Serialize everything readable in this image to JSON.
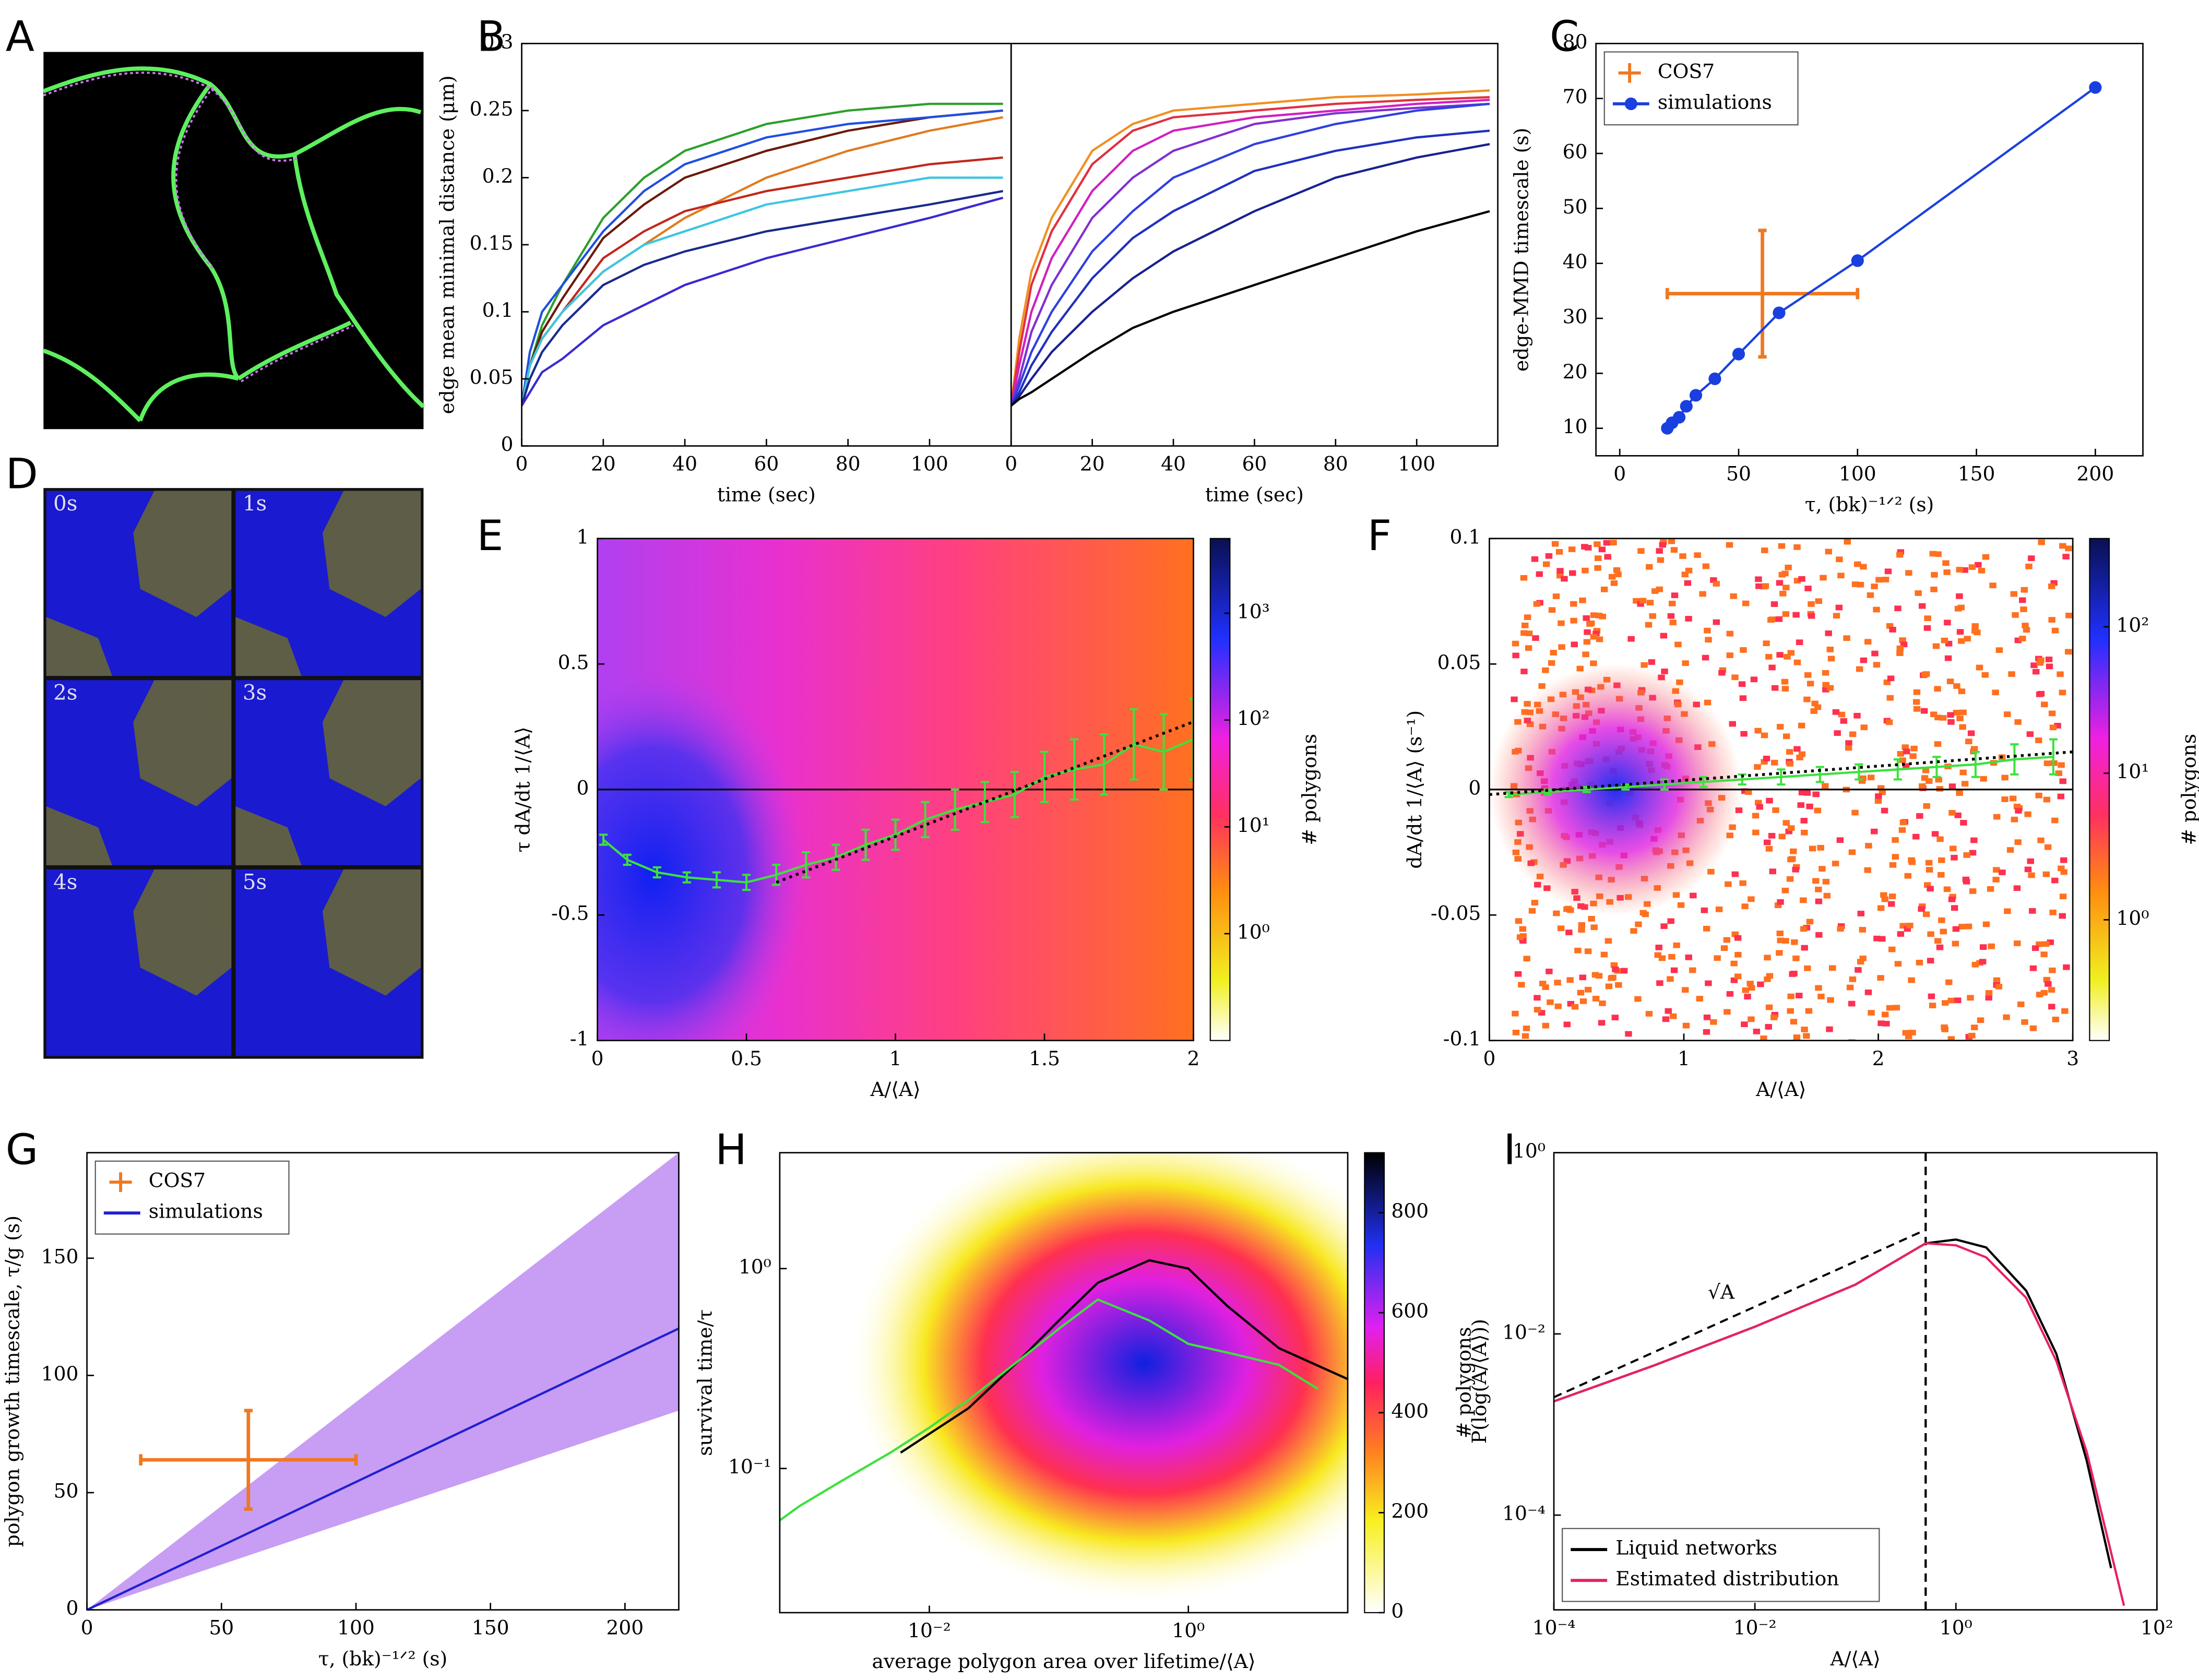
{
  "panel_labels": [
    "A",
    "B",
    "C",
    "D",
    "E",
    "F",
    "G",
    "H",
    "I"
  ],
  "panel_d_times": [
    "0s",
    "1s",
    "2s",
    "3s",
    "4s",
    "5s"
  ],
  "chart_data": [
    {
      "type": "line",
      "ylabel": "edge mean minimal distance (μm)",
      "xlabel": "time (sec)",
      "xlim": [
        0,
        120
      ],
      "xticks": [
        0,
        20,
        40,
        60,
        80,
        100
      ],
      "ylim": [
        0,
        0.3
      ],
      "yticks": [
        0,
        0.05,
        0.1,
        0.15,
        0.2,
        0.25,
        0.3
      ],
      "x": [
        0,
        2,
        5,
        10,
        20,
        30,
        40,
        60,
        80,
        100,
        118
      ],
      "series": [
        {
          "color": "#2ca02c",
          "values": [
            0.03,
            0.06,
            0.09,
            0.12,
            0.17,
            0.2,
            0.22,
            0.24,
            0.25,
            0.255,
            0.255
          ]
        },
        {
          "color": "#6b1a0a",
          "values": [
            0.03,
            0.06,
            0.085,
            0.11,
            0.155,
            0.18,
            0.2,
            0.22,
            0.235,
            0.245,
            0.25
          ]
        },
        {
          "color": "#1f4fe0",
          "values": [
            0.03,
            0.07,
            0.1,
            0.12,
            0.16,
            0.19,
            0.21,
            0.23,
            0.24,
            0.245,
            0.25
          ]
        },
        {
          "color": "#e07b20",
          "values": [
            0.03,
            0.06,
            0.08,
            0.1,
            0.13,
            0.15,
            0.17,
            0.2,
            0.22,
            0.235,
            0.245
          ]
        },
        {
          "color": "#c0281c",
          "values": [
            0.03,
            0.06,
            0.08,
            0.1,
            0.14,
            0.16,
            0.175,
            0.19,
            0.2,
            0.21,
            0.215
          ]
        },
        {
          "color": "#3cc6e0",
          "values": [
            0.03,
            0.06,
            0.08,
            0.1,
            0.13,
            0.15,
            0.16,
            0.18,
            0.19,
            0.2,
            0.2
          ]
        },
        {
          "color": "#1a2a8c",
          "values": [
            0.03,
            0.05,
            0.07,
            0.09,
            0.12,
            0.135,
            0.145,
            0.16,
            0.17,
            0.18,
            0.19
          ]
        },
        {
          "color": "#3a2ad0",
          "values": [
            0.03,
            0.04,
            0.055,
            0.065,
            0.09,
            0.105,
            0.12,
            0.14,
            0.155,
            0.17,
            0.185
          ]
        }
      ]
    },
    {
      "type": "line",
      "xlabel": "time (sec)",
      "xlim": [
        0,
        120
      ],
      "xticks": [
        0,
        20,
        40,
        60,
        80,
        100
      ],
      "ylim": [
        0,
        0.3
      ],
      "x": [
        0,
        2,
        5,
        10,
        20,
        30,
        40,
        60,
        80,
        100,
        118
      ],
      "series": [
        {
          "color": "#f09020",
          "values": [
            0.03,
            0.08,
            0.13,
            0.17,
            0.22,
            0.24,
            0.25,
            0.255,
            0.26,
            0.262,
            0.265
          ]
        },
        {
          "color": "#e03040",
          "values": [
            0.03,
            0.07,
            0.12,
            0.16,
            0.21,
            0.235,
            0.245,
            0.25,
            0.255,
            0.258,
            0.26
          ]
        },
        {
          "color": "#d020c0",
          "values": [
            0.03,
            0.06,
            0.1,
            0.14,
            0.19,
            0.22,
            0.235,
            0.245,
            0.25,
            0.255,
            0.258
          ]
        },
        {
          "color": "#8030d0",
          "values": [
            0.03,
            0.05,
            0.085,
            0.12,
            0.17,
            0.2,
            0.22,
            0.24,
            0.248,
            0.252,
            0.255
          ]
        },
        {
          "color": "#3040e0",
          "values": [
            0.03,
            0.045,
            0.07,
            0.1,
            0.145,
            0.175,
            0.2,
            0.225,
            0.24,
            0.25,
            0.255
          ]
        },
        {
          "color": "#2030c0",
          "values": [
            0.03,
            0.04,
            0.06,
            0.085,
            0.125,
            0.155,
            0.175,
            0.205,
            0.22,
            0.23,
            0.235
          ]
        },
        {
          "color": "#1a2090",
          "values": [
            0.03,
            0.037,
            0.05,
            0.07,
            0.1,
            0.125,
            0.145,
            0.175,
            0.2,
            0.215,
            0.225
          ]
        },
        {
          "color": "#000000",
          "values": [
            0.03,
            0.035,
            0.04,
            0.05,
            0.07,
            0.088,
            0.1,
            0.12,
            0.14,
            0.16,
            0.175
          ]
        }
      ]
    },
    {
      "type": "line",
      "ylabel": "edge-MMD timescale (s)",
      "xlabel": "τ, (bk)⁻¹ᐟ² (s)",
      "xlim": [
        -10,
        220
      ],
      "xticks": [
        0,
        50,
        100,
        150,
        200
      ],
      "ylim": [
        5,
        80
      ],
      "yticks": [
        10,
        20,
        30,
        40,
        50,
        60,
        70,
        80
      ],
      "legend": "upper left",
      "series": [
        {
          "name": "COS7",
          "color": "#f07820",
          "x": [
            60
          ],
          "values": [
            34.5
          ],
          "xerr": [
            40
          ],
          "yerr": [
            11.5
          ]
        },
        {
          "name": "simulations",
          "color": "#1a3fe0",
          "marker": true,
          "x": [
            20,
            22,
            25,
            28,
            32,
            40,
            50,
            67,
            100,
            200
          ],
          "values": [
            10,
            11,
            12,
            14,
            16,
            19,
            23.5,
            31,
            40.5,
            72
          ]
        }
      ]
    },
    {
      "type": "histogram2d",
      "ylabel": "τ dA/dt 1/⟨A⟩",
      "xlabel": "A/⟨A⟩",
      "xlim": [
        0,
        2
      ],
      "xticks": [
        0,
        0.5,
        1,
        1.5,
        2
      ],
      "ylim": [
        -1,
        1
      ],
      "yticks": [
        -1,
        -0.5,
        0,
        0.5,
        1
      ],
      "hline": [
        0
      ],
      "colorbar": {
        "label": "# polygons",
        "scale": "log",
        "lim": [
          0.1,
          5000
        ],
        "ticks": [
          {
            "value": 1,
            "label": "10⁰"
          },
          {
            "value": 10,
            "label": "10¹"
          },
          {
            "value": 100,
            "label": "10²"
          },
          {
            "value": 1000,
            "label": "10³"
          }
        ]
      },
      "fit": {
        "x": [
          0.6,
          2
        ],
        "values": [
          -0.37,
          0.27
        ]
      },
      "series": [
        {
          "color": "#3ee03e",
          "x": [
            0.02,
            0.1,
            0.2,
            0.3,
            0.4,
            0.5,
            0.6,
            0.7,
            0.8,
            0.9,
            1.0,
            1.1,
            1.2,
            1.3,
            1.4,
            1.5,
            1.6,
            1.7,
            1.8,
            1.9,
            2.0
          ],
          "values": [
            -0.2,
            -0.28,
            -0.33,
            -0.35,
            -0.36,
            -0.37,
            -0.34,
            -0.3,
            -0.27,
            -0.22,
            -0.18,
            -0.12,
            -0.08,
            -0.05,
            -0.02,
            0.05,
            0.08,
            0.1,
            0.18,
            0.15,
            0.2
          ],
          "errors": [
            0.02,
            0.02,
            0.02,
            0.02,
            0.03,
            0.03,
            0.04,
            0.05,
            0.05,
            0.06,
            0.06,
            0.07,
            0.08,
            0.08,
            0.09,
            0.1,
            0.12,
            0.12,
            0.14,
            0.15,
            0.16
          ]
        }
      ]
    },
    {
      "type": "histogram2d",
      "ylabel": "dA/dt 1/⟨A⟩  (s⁻¹)",
      "xlabel": "A/⟨A⟩",
      "xlim": [
        0,
        3
      ],
      "xticks": [
        0,
        1,
        2,
        3
      ],
      "ylim": [
        -0.1,
        0.1
      ],
      "yticks": [
        -0.1,
        -0.05,
        0,
        0.05,
        0.1
      ],
      "hline": [
        0
      ],
      "colorbar": {
        "label": "# polygons",
        "scale": "log",
        "lim": [
          0.15,
          400
        ],
        "ticks": [
          {
            "value": 1,
            "label": "10⁰"
          },
          {
            "value": 10,
            "label": "10¹"
          },
          {
            "value": 100,
            "label": "10²"
          }
        ]
      },
      "fit": {
        "x": [
          0,
          3
        ],
        "values": [
          -0.002,
          0.015
        ]
      },
      "series": [
        {
          "color": "#3ee03e",
          "x": [
            0.1,
            0.3,
            0.5,
            0.7,
            0.9,
            1.1,
            1.3,
            1.5,
            1.7,
            1.9,
            2.1,
            2.3,
            2.5,
            2.7,
            2.9
          ],
          "values": [
            -0.002,
            -0.001,
            0,
            0.001,
            0.002,
            0.003,
            0.004,
            0.005,
            0.006,
            0.007,
            0.008,
            0.009,
            0.01,
            0.012,
            0.013
          ],
          "errors": [
            0.001,
            0.001,
            0.001,
            0.001,
            0.002,
            0.002,
            0.002,
            0.003,
            0.003,
            0.003,
            0.004,
            0.004,
            0.005,
            0.006,
            0.007
          ]
        }
      ]
    },
    {
      "type": "line",
      "ylabel": "polygon growth timescale, τ/g (s)",
      "xlabel": "τ, (bk)⁻¹ᐟ² (s)",
      "xlim": [
        0,
        220
      ],
      "xticks": [
        0,
        50,
        100,
        150,
        200
      ],
      "ylim": [
        0,
        195
      ],
      "yticks": [
        0,
        50,
        100,
        150
      ],
      "legend": "upper left",
      "band": {
        "color": "#b57cf0",
        "x": [
          0,
          220
        ],
        "lower": [
          0,
          85
        ],
        "upper": [
          0,
          195
        ]
      },
      "series": [
        {
          "name": "COS7",
          "color": "#f07820",
          "x": [
            60
          ],
          "values": [
            64
          ],
          "xerr": [
            40
          ],
          "yerr": [
            21
          ]
        },
        {
          "name": "simulations",
          "color": "#2020d0",
          "x": [
            0,
            220
          ],
          "values": [
            0,
            120
          ]
        }
      ]
    },
    {
      "type": "histogram2d",
      "ylabel": "survival time/τ",
      "xlabel": "average polygon area over lifetime/⟨A⟩",
      "xscale": "log",
      "yscale": "log",
      "xlim": [
        0.0007,
        17
      ],
      "xticks": [
        {
          "value": 0.01,
          "label": "10⁻²"
        },
        {
          "value": 1,
          "label": "10⁰"
        }
      ],
      "ylim": [
        0.019,
        3.8
      ],
      "yticks": [
        {
          "value": 0.1,
          "label": "10⁻¹"
        },
        {
          "value": 1,
          "label": "10⁰"
        }
      ],
      "colorbar": {
        "label": "# polygons",
        "lim": [
          0,
          920
        ],
        "ticks": [
          0,
          200,
          400,
          600,
          800
        ]
      },
      "series": [
        {
          "color": "#000000",
          "x": [
            0.006,
            0.02,
            0.05,
            0.1,
            0.2,
            0.5,
            1,
            2,
            5,
            17
          ],
          "values": [
            0.12,
            0.2,
            0.35,
            0.55,
            0.85,
            1.1,
            1.0,
            0.65,
            0.4,
            0.28
          ]
        },
        {
          "color": "#3ee03e",
          "x": [
            0.0007,
            0.001,
            0.002,
            0.005,
            0.01,
            0.02,
            0.05,
            0.1,
            0.2,
            0.5,
            1,
            2,
            5,
            10
          ],
          "values": [
            0.055,
            0.065,
            0.085,
            0.12,
            0.16,
            0.22,
            0.35,
            0.5,
            0.7,
            0.55,
            0.42,
            0.38,
            0.33,
            0.25
          ]
        }
      ]
    },
    {
      "type": "line",
      "ylabel": "P(log(A/⟨A⟩))",
      "xlabel": "A/⟨A⟩",
      "xscale": "log",
      "yscale": "log",
      "xlim": [
        0.0001,
        100
      ],
      "xticks": [
        {
          "value": 0.0001,
          "label": "10⁻⁴"
        },
        {
          "value": 0.01,
          "label": "10⁻²"
        },
        {
          "value": 1,
          "label": "10⁰"
        },
        {
          "value": 100,
          "label": "10²"
        }
      ],
      "ylim": [
        9e-06,
        1
      ],
      "yticks": [
        {
          "value": 0.0001,
          "label": "10⁻⁴"
        },
        {
          "value": 0.01,
          "label": "10⁻²"
        },
        {
          "value": 1,
          "label": "10⁰"
        }
      ],
      "legend": "lower left",
      "vline": [
        0.5
      ],
      "guide": {
        "label": "√A",
        "x": [
          0.0001,
          0.5
        ],
        "values": [
          0.002,
          0.141
        ]
      },
      "series": [
        {
          "name": "Liquid networks",
          "color": "#000000",
          "x": [
            0.0001,
            0.001,
            0.01,
            0.1,
            0.5,
            1,
            2,
            5,
            10,
            20,
            35
          ],
          "values": [
            0.0018,
            0.0045,
            0.012,
            0.035,
            0.1,
            0.11,
            0.09,
            0.03,
            0.006,
            0.0004,
            2.6e-05
          ]
        },
        {
          "name": "Estimated distribution",
          "color": "#e8225e",
          "x": [
            0.0001,
            0.001,
            0.01,
            0.1,
            0.5,
            1,
            2,
            5,
            10,
            20,
            47
          ],
          "values": [
            0.0018,
            0.0045,
            0.012,
            0.035,
            0.1,
            0.095,
            0.07,
            0.025,
            0.005,
            0.0005,
            1e-05
          ]
        }
      ]
    }
  ]
}
